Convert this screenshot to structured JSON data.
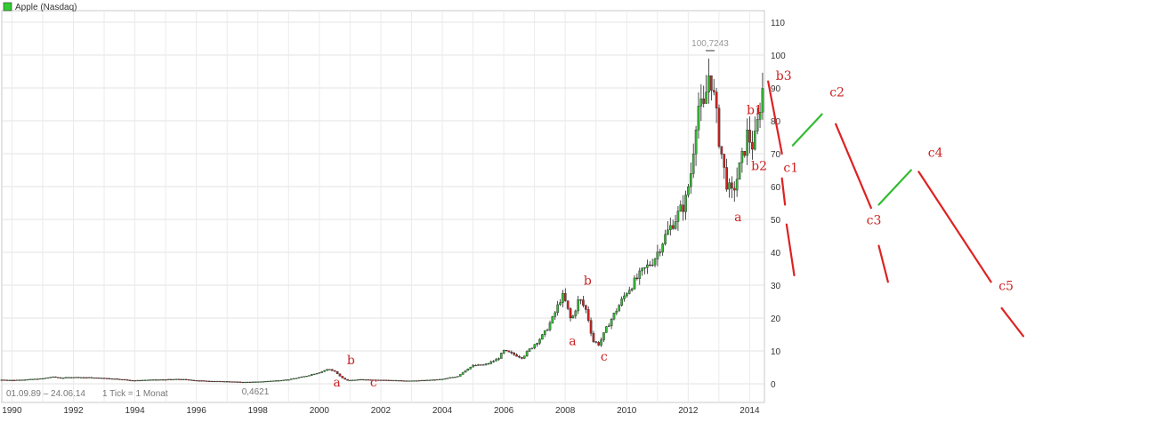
{
  "chart_data": {
    "type": "candlestick",
    "title": "Apple (Nasdaq)",
    "legend_color": "#33cc33",
    "period_label": "01.09.89 – 24.06.14",
    "tick_label": "1 Tick = 1 Monat",
    "min_label": "0,4621",
    "max_label": "100,7243",
    "x_ticks": [
      "1990",
      "1992",
      "1994",
      "1996",
      "1998",
      "2000",
      "2002",
      "2004",
      "2006",
      "2008",
      "2010",
      "2012",
      "2014"
    ],
    "y_ticks": [
      "0",
      "10",
      "20",
      "30",
      "40",
      "50",
      "60",
      "70",
      "80",
      "90",
      "100",
      "110"
    ],
    "ylim": [
      0,
      110
    ],
    "xlim": [
      1989.67,
      2014.48
    ],
    "up_color": "#33bb33",
    "down_color": "#cc2222",
    "series": [
      {
        "values": [
          [
            1989.67,
            1.2
          ],
          [
            1990.0,
            1.1
          ],
          [
            1990.5,
            1.3
          ],
          [
            1991.0,
            1.6
          ],
          [
            1991.3,
            2.1
          ],
          [
            1991.6,
            1.8
          ],
          [
            1992.0,
            2.0
          ],
          [
            1992.5,
            1.9
          ],
          [
            1993.0,
            1.7
          ],
          [
            1993.4,
            1.5
          ],
          [
            1993.8,
            1.1
          ],
          [
            1994.0,
            1.0
          ],
          [
            1994.5,
            1.2
          ],
          [
            1995.0,
            1.3
          ],
          [
            1995.5,
            1.4
          ],
          [
            1996.0,
            1.0
          ],
          [
            1996.5,
            0.8
          ],
          [
            1997.0,
            0.7
          ],
          [
            1997.5,
            0.5
          ],
          [
            1998.0,
            0.6
          ],
          [
            1998.5,
            0.9
          ],
          [
            1999.0,
            1.3
          ],
          [
            1999.5,
            2.2
          ],
          [
            2000.0,
            3.5
          ],
          [
            2000.3,
            4.5
          ],
          [
            2000.5,
            3.8
          ],
          [
            2000.7,
            2.0
          ],
          [
            2000.9,
            1.0
          ],
          [
            2001.3,
            1.3
          ],
          [
            2001.7,
            1.2
          ],
          [
            2002.0,
            1.2
          ],
          [
            2002.5,
            1.0
          ],
          [
            2003.0,
            0.9
          ],
          [
            2003.5,
            1.1
          ],
          [
            2004.0,
            1.4
          ],
          [
            2004.5,
            2.3
          ],
          [
            2004.8,
            4.5
          ],
          [
            2005.0,
            5.5
          ],
          [
            2005.4,
            5.8
          ],
          [
            2005.8,
            7.5
          ],
          [
            2006.0,
            10.0
          ],
          [
            2006.3,
            9.0
          ],
          [
            2006.6,
            8.0
          ],
          [
            2007.0,
            12.0
          ],
          [
            2007.3,
            15.0
          ],
          [
            2007.6,
            20.0
          ],
          [
            2007.9,
            27.0
          ],
          [
            2008.0,
            25.0
          ],
          [
            2008.2,
            19.0
          ],
          [
            2008.45,
            26.0
          ],
          [
            2008.7,
            22.0
          ],
          [
            2008.9,
            13.0
          ],
          [
            2009.1,
            12.0
          ],
          [
            2009.4,
            18.0
          ],
          [
            2009.7,
            23.0
          ],
          [
            2010.0,
            28.0
          ],
          [
            2010.5,
            34.0
          ],
          [
            2010.9,
            38.0
          ],
          [
            2011.2,
            44.0
          ],
          [
            2011.5,
            49.0
          ],
          [
            2011.9,
            55.0
          ],
          [
            2012.1,
            65.0
          ],
          [
            2012.3,
            85.0
          ],
          [
            2012.5,
            83.0
          ],
          [
            2012.7,
            96.0
          ],
          [
            2012.85,
            86.0
          ],
          [
            2013.0,
            75.0
          ],
          [
            2013.2,
            63.0
          ],
          [
            2013.4,
            57.0
          ],
          [
            2013.6,
            63.0
          ],
          [
            2013.8,
            70.0
          ],
          [
            2013.95,
            77.0
          ],
          [
            2014.05,
            72.0
          ],
          [
            2014.2,
            75.0
          ],
          [
            2014.35,
            86.0
          ],
          [
            2014.47,
            92.0
          ]
        ]
      }
    ],
    "wave_labels": [
      {
        "text": "b3",
        "x": 2014.85,
        "y": 92.5,
        "color": "#cc2222"
      },
      {
        "text": "c2",
        "x": 2016.6,
        "y": 87.5,
        "color": "#cc2222"
      },
      {
        "text": "c1",
        "x": 2015.1,
        "y": 64.5,
        "color": "#cc2222"
      },
      {
        "text": "c4",
        "x": 2019.8,
        "y": 69.0,
        "color": "#cc2222"
      },
      {
        "text": "c3",
        "x": 2017.8,
        "y": 48.5,
        "color": "#cc2222"
      },
      {
        "text": "c5",
        "x": 2022.1,
        "y": 28.5,
        "color": "#cc2222"
      },
      {
        "text": "b1",
        "x": 2013.9,
        "y": 82.0,
        "color": "#cc2222"
      },
      {
        "text": "b2",
        "x": 2014.05,
        "y": 65.0,
        "color": "#cc2222"
      },
      {
        "text": "a",
        "x": 2013.5,
        "y": 49.5,
        "color": "#cc2222"
      },
      {
        "text": "b",
        "x": 2008.6,
        "y": 30.2,
        "color": "#cc2222"
      },
      {
        "text": "a",
        "x": 2008.12,
        "y": 11.8,
        "color": "#cc2222"
      },
      {
        "text": "c",
        "x": 2009.15,
        "y": 7.0,
        "color": "#cc2222"
      },
      {
        "text": "b",
        "x": 2000.9,
        "y": 6.0,
        "color": "#cc2222"
      },
      {
        "text": "a",
        "x": 2000.45,
        "y": -0.8,
        "color": "#cc2222"
      },
      {
        "text": "c",
        "x": 2001.65,
        "y": -0.8,
        "color": "#cc2222"
      }
    ],
    "wave_lines": [
      {
        "x1": 2014.6,
        "y1": 92.0,
        "x2": 2015.05,
        "y2": 70.0,
        "color": "#dd2222"
      },
      {
        "x1": 2015.4,
        "y1": 72.5,
        "x2": 2016.35,
        "y2": 82.0,
        "color": "#33bb33"
      },
      {
        "x1": 2016.8,
        "y1": 79.0,
        "x2": 2017.95,
        "y2": 53.5,
        "color": "#dd2222"
      },
      {
        "x1": 2018.2,
        "y1": 54.5,
        "x2": 2019.25,
        "y2": 65.0,
        "color": "#33bb33"
      },
      {
        "x1": 2019.5,
        "y1": 64.5,
        "x2": 2021.85,
        "y2": 31.0,
        "color": "#dd2222"
      },
      {
        "x1": 2015.05,
        "y1": 62.5,
        "x2": 2015.15,
        "y2": 54.5,
        "color": "#dd2222"
      },
      {
        "x1": 2015.2,
        "y1": 48.5,
        "x2": 2015.45,
        "y2": 33.0,
        "color": "#dd2222"
      },
      {
        "x1": 2018.2,
        "y1": 42.0,
        "x2": 2018.5,
        "y2": 31.0,
        "color": "#dd2222"
      },
      {
        "x1": 2022.2,
        "y1": 23.0,
        "x2": 2022.9,
        "y2": 14.5,
        "color": "#dd2222"
      }
    ]
  }
}
